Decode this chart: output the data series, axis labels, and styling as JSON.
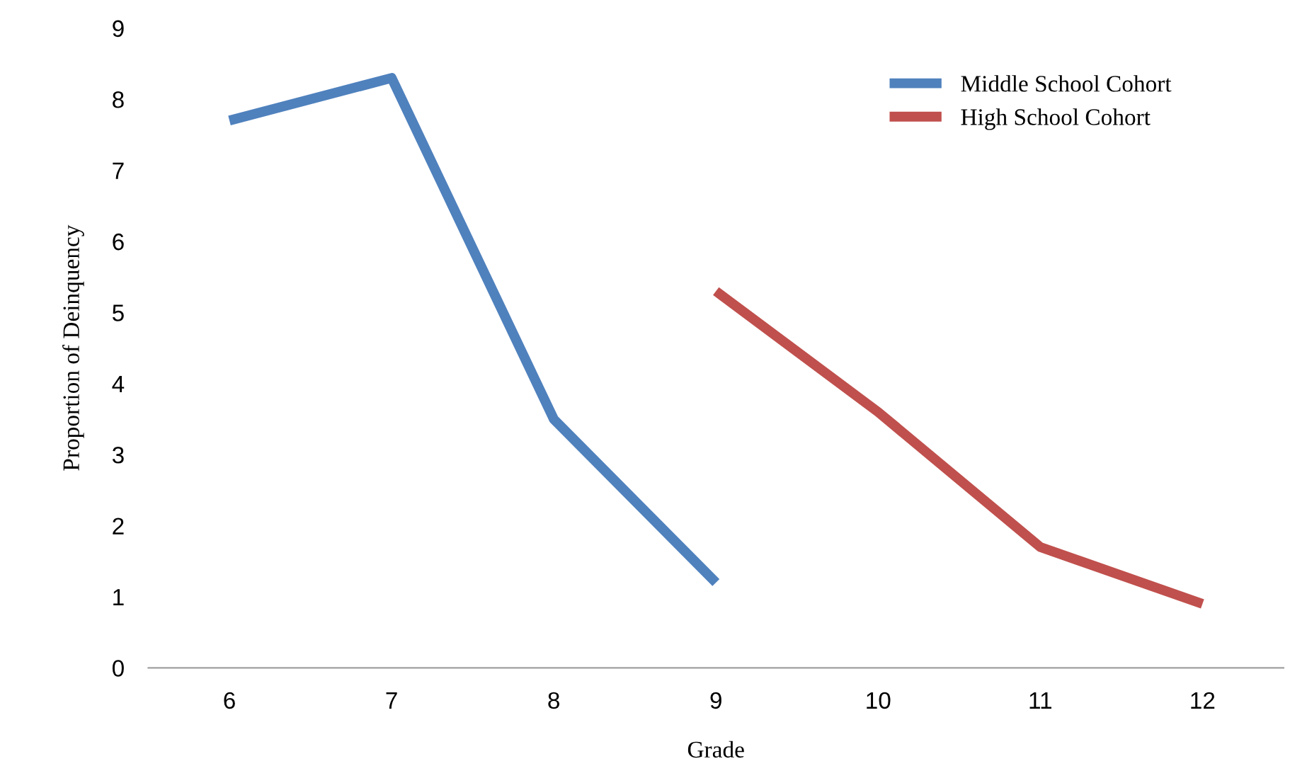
{
  "chart_data": {
    "type": "line",
    "xlabel": "Grade",
    "ylabel": "Proportion of Deinquency",
    "categories": [
      "6",
      "7",
      "8",
      "9",
      "10",
      "11",
      "12"
    ],
    "series": [
      {
        "name": "Middle School Cohort",
        "color": "#4f81bd",
        "values": [
          7.7,
          8.3,
          3.5,
          1.2,
          null,
          null,
          null
        ]
      },
      {
        "name": "High School Cohort",
        "color": "#c0504d",
        "values": [
          null,
          null,
          null,
          5.3,
          3.6,
          1.7,
          0.9
        ]
      }
    ],
    "ylim": [
      0,
      9
    ],
    "yticks": [
      0,
      1,
      2,
      3,
      4,
      5,
      6,
      7,
      8,
      9
    ],
    "grid": false,
    "legend": "top right",
    "marker": "none",
    "line_style": "solid"
  }
}
